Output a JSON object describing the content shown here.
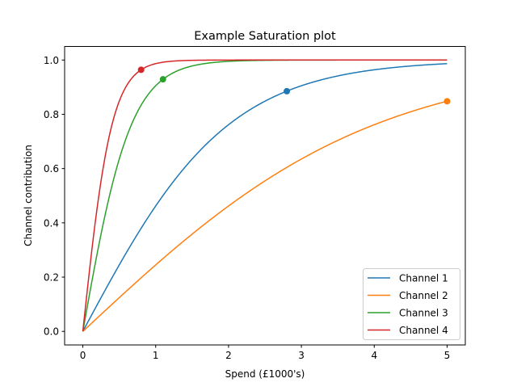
{
  "chart_data": {
    "type": "line",
    "title": "Example Saturation plot",
    "xlabel": "Spend (£1000's)",
    "ylabel": "Channel contribution",
    "xlim": [
      -0.25,
      5.25
    ],
    "ylim": [
      -0.05,
      1.05
    ],
    "xticks": [
      0,
      1,
      2,
      3,
      4,
      5
    ],
    "xtick_labels": [
      "0",
      "1",
      "2",
      "3",
      "4",
      "5"
    ],
    "yticks": [
      0.0,
      0.2,
      0.4,
      0.6,
      0.8,
      1.0
    ],
    "ytick_labels": [
      "0.0",
      "0.2",
      "0.4",
      "0.6",
      "0.8",
      "1.0"
    ],
    "grid": false,
    "legend_position": "bottom-right",
    "x_range": [
      0,
      5
    ],
    "series": [
      {
        "name": "Channel 1",
        "color": "#1f77b4",
        "lambda": 1.0,
        "marker": {
          "x": 2.8,
          "y": 0.885
        }
      },
      {
        "name": "Channel 2",
        "color": "#ff7f0e",
        "lambda": 0.5,
        "marker": {
          "x": 5.0,
          "y": 0.848
        }
      },
      {
        "name": "Channel 3",
        "color": "#2ca02c",
        "lambda": 3.0,
        "marker": {
          "x": 1.1,
          "y": 0.929
        }
      },
      {
        "name": "Channel 4",
        "color": "#d62728",
        "lambda": 5.0,
        "marker": {
          "x": 0.8,
          "y": 0.964
        }
      }
    ]
  }
}
